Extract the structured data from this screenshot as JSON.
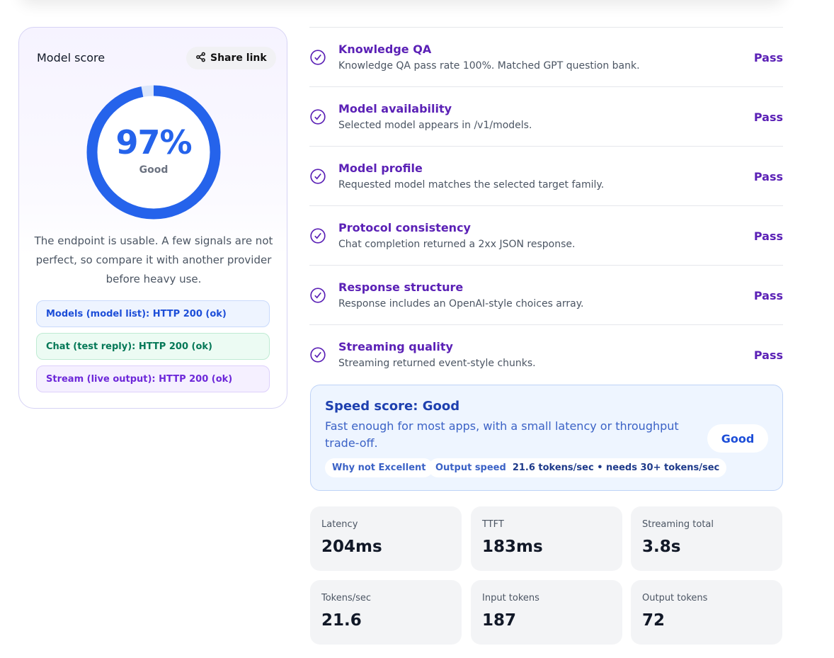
{
  "score_card": {
    "title": "Model score",
    "share_label": "Share link",
    "score_percent": 97,
    "score_text": "97%",
    "score_label": "Good",
    "description": "The endpoint is usable. A few signals are not perfect, so compare it with another provider before heavy use.",
    "statuses": [
      {
        "label": "Models (model list): HTTP 200 (ok)",
        "color": "#1d4ed8"
      },
      {
        "label": "Chat (test reply): HTTP 200 (ok)",
        "color": "#047857"
      },
      {
        "label": "Stream (live output): HTTP 200 (ok)",
        "color": "#6d28d9"
      }
    ],
    "ring_color": "#2563eb",
    "ring_track_color": "#dbe6fb"
  },
  "checks": [
    {
      "name": "Knowledge QA",
      "desc": "Knowledge QA pass rate 100%. Matched GPT question bank.",
      "status": "Pass"
    },
    {
      "name": "Model availability",
      "desc": "Selected model appears in /v1/models.",
      "status": "Pass"
    },
    {
      "name": "Model profile",
      "desc": "Requested model matches the selected target family.",
      "status": "Pass"
    },
    {
      "name": "Protocol consistency",
      "desc": "Chat completion returned a 2xx JSON response.",
      "status": "Pass"
    },
    {
      "name": "Response structure",
      "desc": "Response includes an OpenAI-style choices array.",
      "status": "Pass"
    },
    {
      "name": "Streaming quality",
      "desc": "Streaming returned event-style chunks.",
      "status": "Pass"
    }
  ],
  "speed": {
    "title": "Speed score: Good",
    "desc": "Fast enough for most apps, with a small latency or throughput trade-off.",
    "badge": "Good",
    "why_chip": "Why not Excellent",
    "output_speed_label": "Output speed",
    "output_speed_value": "21.6 tokens/sec • needs 30+ tokens/sec"
  },
  "metrics": [
    {
      "label": "Latency",
      "value": "204ms"
    },
    {
      "label": "TTFT",
      "value": "183ms"
    },
    {
      "label": "Streaming total",
      "value": "3.8s"
    },
    {
      "label": "Tokens/sec",
      "value": "21.6"
    },
    {
      "label": "Input tokens",
      "value": "187"
    },
    {
      "label": "Output tokens",
      "value": "72"
    }
  ],
  "icons": {
    "share": "share-icon",
    "check": "check-circle-icon"
  },
  "colors": {
    "accent_purple": "#5b21b6",
    "accent_blue": "#2563eb"
  }
}
